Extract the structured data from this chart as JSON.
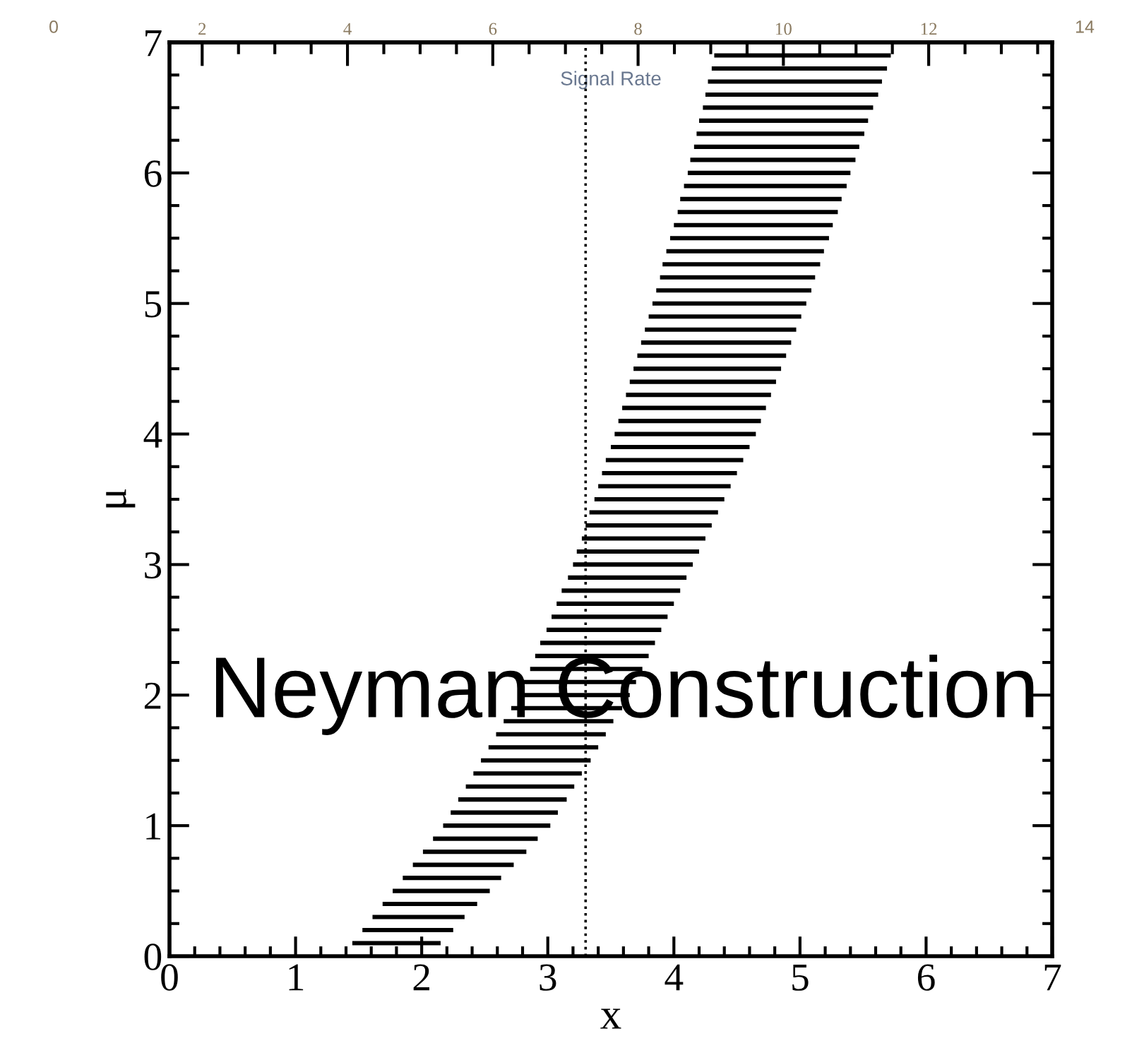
{
  "chart_data": {
    "type": "line",
    "xlabel": "x",
    "ylabel": "μ",
    "x2label": "Signal Rate",
    "color": "#000000",
    "series": [
      {
        "x": [
          1.45,
          2.15
        ],
        "values": [
          0.1,
          0.1
        ]
      },
      {
        "x": [
          1.53,
          2.25
        ],
        "values": [
          0.2,
          0.2
        ]
      },
      {
        "x": [
          1.61,
          2.34
        ],
        "values": [
          0.3,
          0.3
        ]
      },
      {
        "x": [
          1.69,
          2.44
        ],
        "values": [
          0.4,
          0.4
        ]
      },
      {
        "x": [
          1.77,
          2.54
        ],
        "values": [
          0.5,
          0.5
        ]
      },
      {
        "x": [
          1.85,
          2.63
        ],
        "values": [
          0.6,
          0.6
        ]
      },
      {
        "x": [
          1.93,
          2.73
        ],
        "values": [
          0.7,
          0.7
        ]
      },
      {
        "x": [
          2.01,
          2.83
        ],
        "values": [
          0.8,
          0.8
        ]
      },
      {
        "x": [
          2.09,
          2.92
        ],
        "values": [
          0.9,
          0.9
        ]
      },
      {
        "x": [
          2.17,
          3.02
        ],
        "values": [
          1.0,
          1.0
        ]
      },
      {
        "x": [
          2.23,
          3.08
        ],
        "values": [
          1.1,
          1.1
        ]
      },
      {
        "x": [
          2.29,
          3.15
        ],
        "values": [
          1.2,
          1.2
        ]
      },
      {
        "x": [
          2.35,
          3.21
        ],
        "values": [
          1.3,
          1.3
        ]
      },
      {
        "x": [
          2.41,
          3.27
        ],
        "values": [
          1.4,
          1.4
        ]
      },
      {
        "x": [
          2.47,
          3.34
        ],
        "values": [
          1.5,
          1.5
        ]
      },
      {
        "x": [
          2.53,
          3.4
        ],
        "values": [
          1.6,
          1.6
        ]
      },
      {
        "x": [
          2.59,
          3.46
        ],
        "values": [
          1.7,
          1.7
        ]
      },
      {
        "x": [
          2.65,
          3.52
        ],
        "values": [
          1.8,
          1.8
        ]
      },
      {
        "x": [
          2.71,
          3.59
        ],
        "values": [
          1.9,
          1.9
        ]
      },
      {
        "x": [
          2.77,
          3.65
        ],
        "values": [
          2.0,
          2.0
        ]
      },
      {
        "x": [
          2.81,
          3.7
        ],
        "values": [
          2.1,
          2.1
        ]
      },
      {
        "x": [
          2.86,
          3.75
        ],
        "values": [
          2.2,
          2.2
        ]
      },
      {
        "x": [
          2.9,
          3.8
        ],
        "values": [
          2.3,
          2.3
        ]
      },
      {
        "x": [
          2.94,
          3.85
        ],
        "values": [
          2.4,
          2.4
        ]
      },
      {
        "x": [
          2.99,
          3.9
        ],
        "values": [
          2.5,
          2.5
        ]
      },
      {
        "x": [
          3.03,
          3.95
        ],
        "values": [
          2.6,
          2.6
        ]
      },
      {
        "x": [
          3.07,
          4.0
        ],
        "values": [
          2.7,
          2.7
        ]
      },
      {
        "x": [
          3.11,
          4.05
        ],
        "values": [
          2.8,
          2.8
        ]
      },
      {
        "x": [
          3.16,
          4.1
        ],
        "values": [
          2.9,
          2.9
        ]
      },
      {
        "x": [
          3.2,
          4.15
        ],
        "values": [
          3.0,
          3.0
        ]
      },
      {
        "x": [
          3.23,
          4.2
        ],
        "values": [
          3.1,
          3.1
        ]
      },
      {
        "x": [
          3.27,
          4.25
        ],
        "values": [
          3.2,
          3.2
        ]
      },
      {
        "x": [
          3.3,
          4.3
        ],
        "values": [
          3.3,
          3.3
        ]
      },
      {
        "x": [
          3.33,
          4.35
        ],
        "values": [
          3.4,
          3.4
        ]
      },
      {
        "x": [
          3.37,
          4.4
        ],
        "values": [
          3.5,
          3.5
        ]
      },
      {
        "x": [
          3.4,
          4.45
        ],
        "values": [
          3.6,
          3.6
        ]
      },
      {
        "x": [
          3.43,
          4.5
        ],
        "values": [
          3.7,
          3.7
        ]
      },
      {
        "x": [
          3.46,
          4.55
        ],
        "values": [
          3.8,
          3.8
        ]
      },
      {
        "x": [
          3.5,
          4.6
        ],
        "values": [
          3.9,
          3.9
        ]
      },
      {
        "x": [
          3.53,
          4.65
        ],
        "values": [
          4.0,
          4.0
        ]
      },
      {
        "x": [
          3.56,
          4.69
        ],
        "values": [
          4.1,
          4.1
        ]
      },
      {
        "x": [
          3.59,
          4.73
        ],
        "values": [
          4.2,
          4.2
        ]
      },
      {
        "x": [
          3.62,
          4.77
        ],
        "values": [
          4.3,
          4.3
        ]
      },
      {
        "x": [
          3.65,
          4.81
        ],
        "values": [
          4.4,
          4.4
        ]
      },
      {
        "x": [
          3.68,
          4.85
        ],
        "values": [
          4.5,
          4.5
        ]
      },
      {
        "x": [
          3.71,
          4.89
        ],
        "values": [
          4.6,
          4.6
        ]
      },
      {
        "x": [
          3.74,
          4.93
        ],
        "values": [
          4.7,
          4.7
        ]
      },
      {
        "x": [
          3.77,
          4.97
        ],
        "values": [
          4.8,
          4.8
        ]
      },
      {
        "x": [
          3.8,
          5.01
        ],
        "values": [
          4.9,
          4.9
        ]
      },
      {
        "x": [
          3.83,
          5.05
        ],
        "values": [
          5.0,
          5.0
        ]
      },
      {
        "x": [
          3.86,
          5.09
        ],
        "values": [
          5.1,
          5.1
        ]
      },
      {
        "x": [
          3.89,
          5.12
        ],
        "values": [
          5.2,
          5.2
        ]
      },
      {
        "x": [
          3.91,
          5.16
        ],
        "values": [
          5.3,
          5.3
        ]
      },
      {
        "x": [
          3.94,
          5.19
        ],
        "values": [
          5.4,
          5.4
        ]
      },
      {
        "x": [
          3.97,
          5.23
        ],
        "values": [
          5.5,
          5.5
        ]
      },
      {
        "x": [
          4.0,
          5.26
        ],
        "values": [
          5.6,
          5.6
        ]
      },
      {
        "x": [
          4.03,
          5.3
        ],
        "values": [
          5.7,
          5.7
        ]
      },
      {
        "x": [
          4.05,
          5.33
        ],
        "values": [
          5.8,
          5.8
        ]
      },
      {
        "x": [
          4.08,
          5.37
        ],
        "values": [
          5.9,
          5.9
        ]
      },
      {
        "x": [
          4.11,
          5.4
        ],
        "values": [
          6.0,
          6.0
        ]
      },
      {
        "x": [
          4.13,
          5.44
        ],
        "values": [
          6.1,
          6.1
        ]
      },
      {
        "x": [
          4.16,
          5.47
        ],
        "values": [
          6.2,
          6.2
        ]
      },
      {
        "x": [
          4.18,
          5.51
        ],
        "values": [
          6.3,
          6.3
        ]
      },
      {
        "x": [
          4.2,
          5.54
        ],
        "values": [
          6.4,
          6.4
        ]
      },
      {
        "x": [
          4.23,
          5.58
        ],
        "values": [
          6.5,
          6.5
        ]
      },
      {
        "x": [
          4.25,
          5.62
        ],
        "values": [
          6.6,
          6.6
        ]
      },
      {
        "x": [
          4.27,
          5.65
        ],
        "values": [
          6.7,
          6.7
        ]
      },
      {
        "x": [
          4.3,
          5.69
        ],
        "values": [
          6.8,
          6.8
        ]
      },
      {
        "x": [
          4.32,
          5.72
        ],
        "values": [
          6.9,
          6.9
        ]
      }
    ],
    "xlim": [
      0,
      7
    ],
    "xticks": [
      0,
      1,
      2,
      3,
      4,
      5,
      6,
      7
    ],
    "ylim": [
      0,
      7
    ],
    "yticks": [
      0,
      1,
      2,
      3,
      4,
      5,
      6,
      7
    ],
    "x2lim": [
      1.55,
      13.7
    ],
    "x2ticks": [
      2,
      4,
      6,
      8,
      10,
      12
    ],
    "ref_lines": [
      {
        "axis": "x",
        "value": 3.3,
        "line_style": "dotted",
        "color": "#000000"
      }
    ],
    "annotations": [
      "Neyman Construction",
      "0",
      "14"
    ],
    "grid": false
  }
}
